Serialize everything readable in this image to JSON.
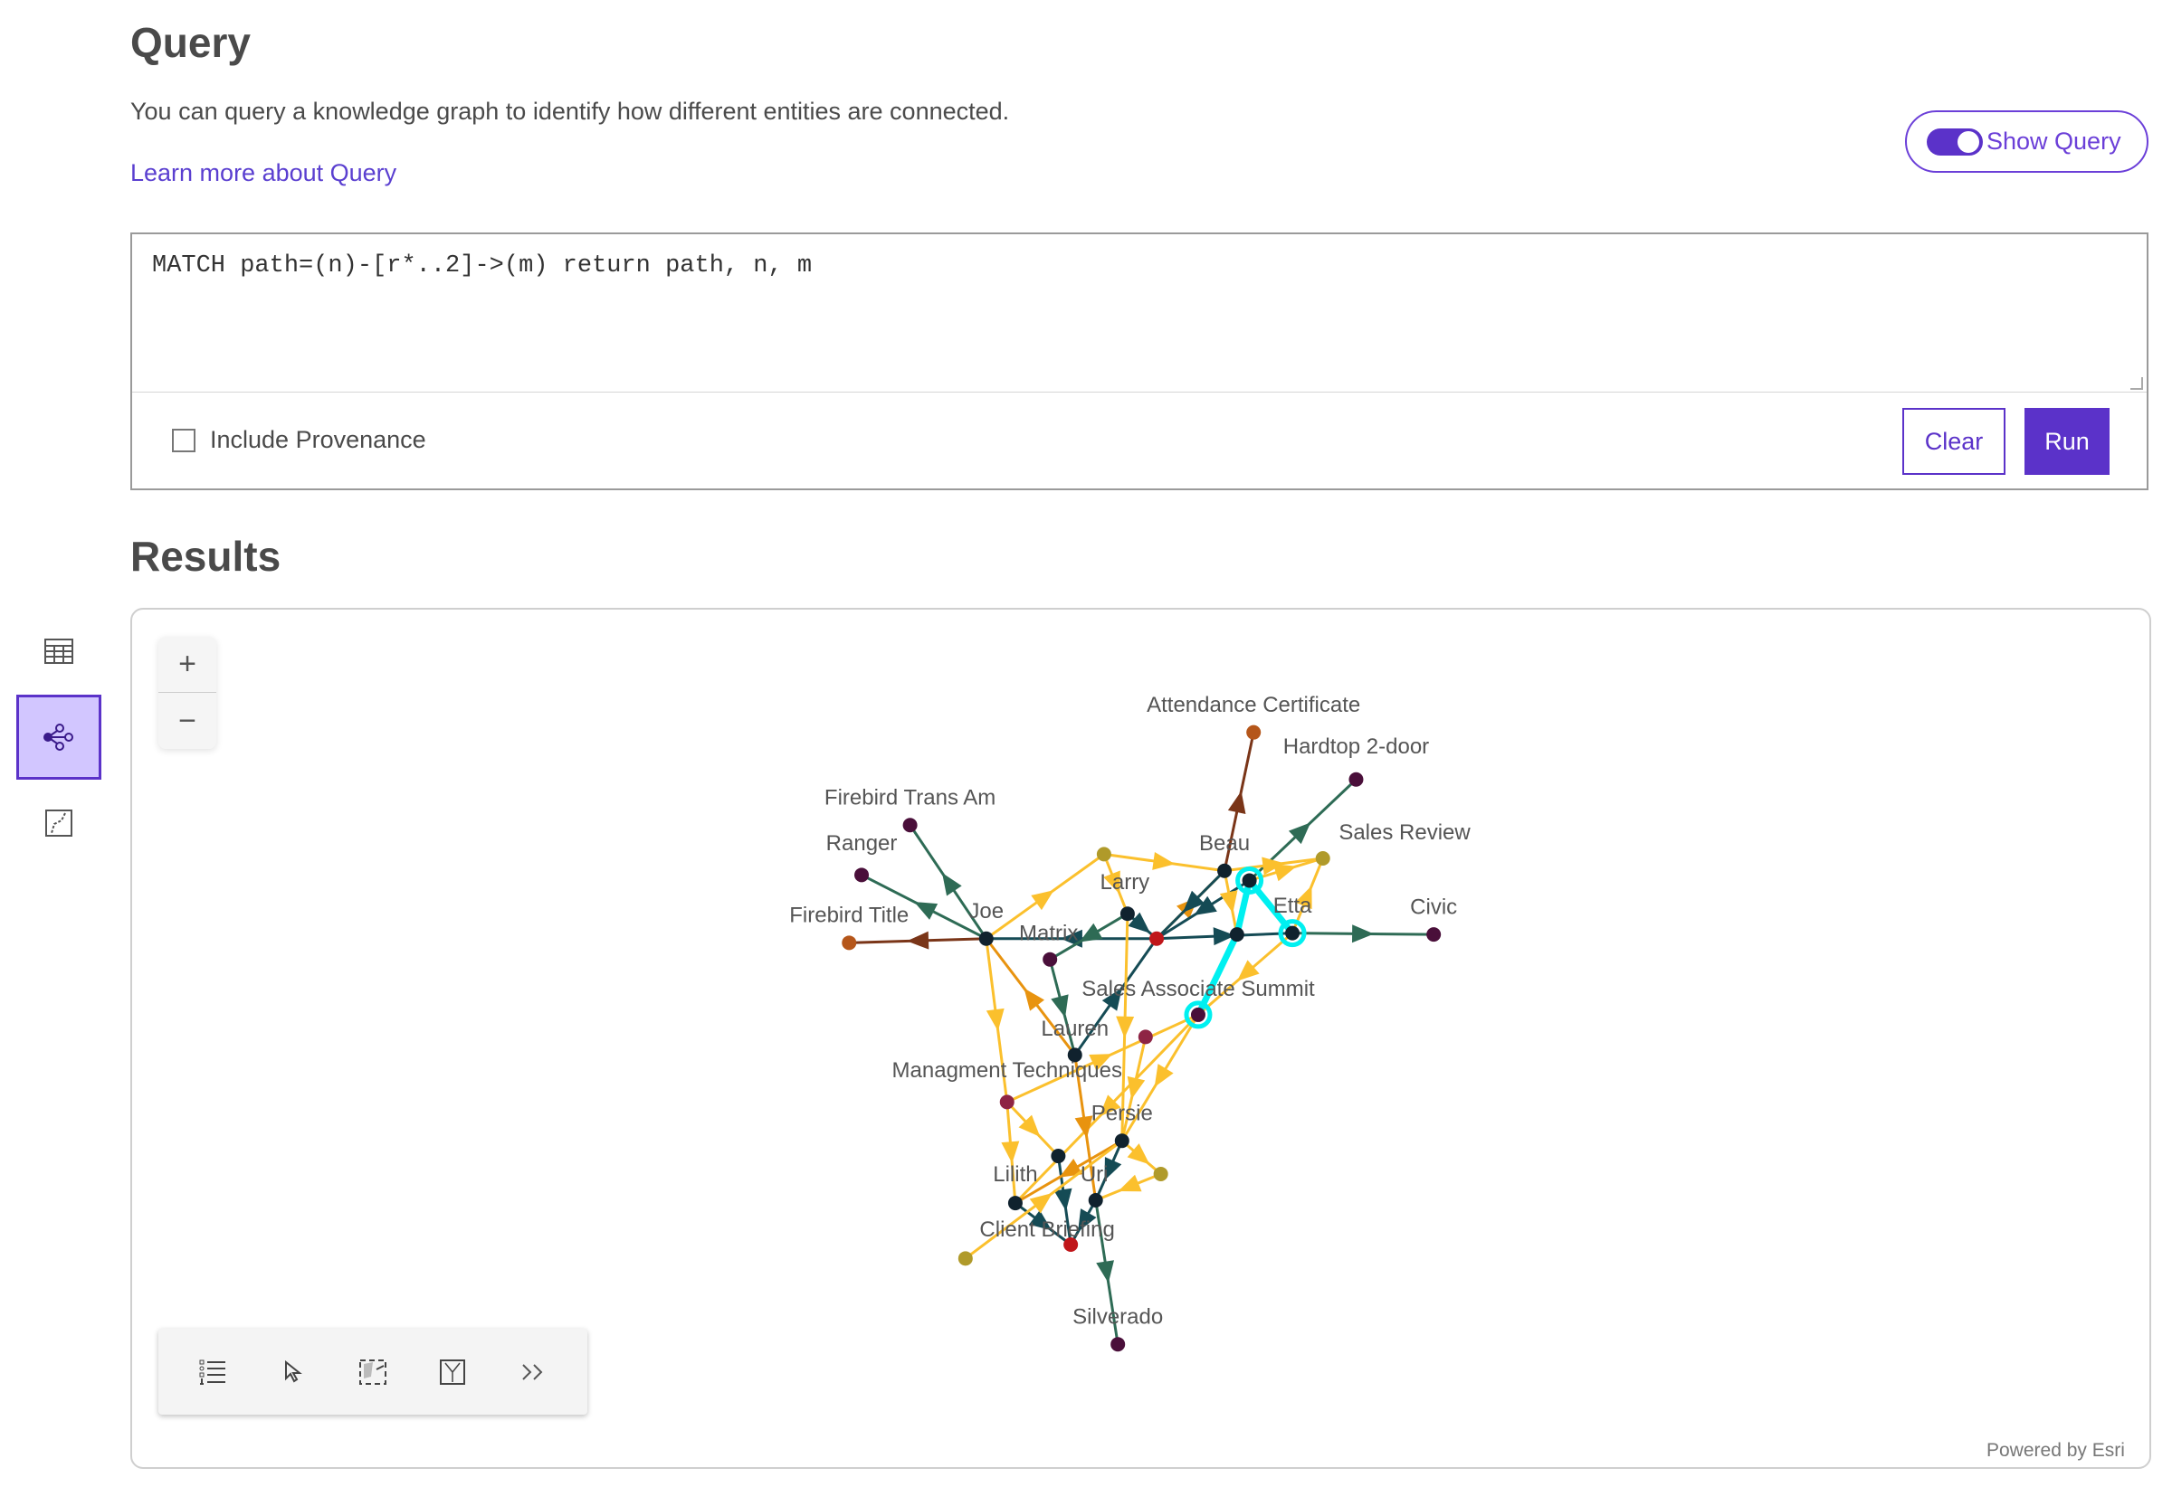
{
  "header": {
    "title": "Query",
    "description": "You can query a knowledge graph to identify how different entities are connected.",
    "learn_more": "Learn more about Query",
    "show_query_label": "Show Query",
    "show_query_on": true
  },
  "query": {
    "text": "MATCH path=(n)-[r*..2]->(m) return path, n, m",
    "include_provenance_label": "Include Provenance",
    "include_provenance_checked": false,
    "clear_label": "Clear",
    "run_label": "Run"
  },
  "results": {
    "title": "Results",
    "side_tabs": [
      {
        "icon": "table-icon"
      },
      {
        "icon": "link-chart-icon",
        "active": true
      },
      {
        "icon": "map-icon"
      }
    ],
    "zoom_in": "+",
    "zoom_out": "−",
    "toolbar": [
      {
        "icon": "list-icon"
      },
      {
        "icon": "select-cursor-icon"
      },
      {
        "icon": "lasso-select-icon"
      },
      {
        "icon": "layout-icon"
      },
      {
        "icon": "expand-icon"
      }
    ],
    "powered_by": "Powered by Esri"
  },
  "colors": {
    "accent": "#5b32c9",
    "highlight": "#00f0f0"
  },
  "graph": {
    "nodes": [
      {
        "id": "attendance",
        "label": "Attendance Certificate",
        "color": "#b5561a"
      },
      {
        "id": "hardtop",
        "label": "Hardtop 2-door",
        "color": "#4a0f3a"
      },
      {
        "id": "fta",
        "label": "Firebird Trans Am",
        "color": "#4a0f3a"
      },
      {
        "id": "ranger",
        "label": "Ranger",
        "color": "#4a0f3a"
      },
      {
        "id": "ftitle",
        "label": "Firebird Title",
        "color": "#b5561a"
      },
      {
        "id": "joe",
        "label": "Joe",
        "color": "#10222e"
      },
      {
        "id": "beau",
        "label": "Beau",
        "color": "#10222e"
      },
      {
        "id": "salesreview",
        "label": "Sales Review",
        "color": "#b09a2a"
      },
      {
        "id": "larry",
        "label": "Larry",
        "color": "#10222e"
      },
      {
        "id": "matrix",
        "label": "Matrix",
        "color": "#4a0f3a"
      },
      {
        "id": "red1",
        "label": "",
        "color": "#c0161a"
      },
      {
        "id": "etta",
        "label": "Etta",
        "color": "#10222e"
      },
      {
        "id": "civic",
        "label": "Civic",
        "color": "#4a0f3a"
      },
      {
        "id": "ytop",
        "label": "",
        "color": "#b09a2a"
      },
      {
        "id": "cy1",
        "label": "",
        "color": "#10222e"
      },
      {
        "id": "n893",
        "label": "",
        "color": "#10222e"
      },
      {
        "id": "summit",
        "label": "Sales Associate Summit",
        "color": "#4a0f3a"
      },
      {
        "id": "lauren",
        "label": "Lauren",
        "color": "#10222e"
      },
      {
        "id": "m827",
        "label": "",
        "color": "#8e2444"
      },
      {
        "id": "mgmt",
        "label": "Managment Techniques",
        "color": "#8e2444"
      },
      {
        "id": "persie",
        "label": "Persie",
        "color": "#10222e"
      },
      {
        "id": "n764",
        "label": "",
        "color": "#10222e"
      },
      {
        "id": "o838",
        "label": "",
        "color": "#b09a2a"
      },
      {
        "id": "lilith",
        "label": "Lilith",
        "color": "#10222e"
      },
      {
        "id": "uri",
        "label": "Uri",
        "color": "#10222e"
      },
      {
        "id": "client",
        "label": "Client Briefing",
        "color": "#c0161a"
      },
      {
        "id": "o697",
        "label": "",
        "color": "#b09a2a"
      },
      {
        "id": "silverado",
        "label": "Silverado",
        "color": "#4a0f3a"
      }
    ],
    "edges": [
      {
        "from": "joe",
        "to": "fta",
        "color": "#2e6b55"
      },
      {
        "from": "joe",
        "to": "ranger",
        "color": "#2e6b55"
      },
      {
        "from": "joe",
        "to": "ftitle",
        "color": "#7a3518"
      },
      {
        "from": "joe",
        "to": "ytop",
        "color": "#fbc02d"
      },
      {
        "from": "joe",
        "to": "mgmt",
        "color": "#fbc02d"
      },
      {
        "from": "lauren",
        "to": "joe",
        "color": "#e8930f"
      },
      {
        "from": "red1",
        "to": "joe",
        "color": "#154b55"
      },
      {
        "from": "beau",
        "to": "attendance",
        "color": "#7a3518"
      },
      {
        "from": "cy1",
        "to": "hardtop",
        "color": "#2e6b55"
      },
      {
        "from": "larry",
        "to": "matrix",
        "color": "#2e6b55"
      },
      {
        "from": "larry",
        "to": "red1",
        "color": "#154b55"
      },
      {
        "from": "red1",
        "to": "beau",
        "color": "#e8930f"
      },
      {
        "from": "ytop",
        "to": "beau",
        "color": "#fbc02d"
      },
      {
        "from": "ytop",
        "to": "larry",
        "color": "#fbc02d"
      },
      {
        "from": "beau",
        "to": "red1",
        "color": "#154b55"
      },
      {
        "from": "cy1",
        "to": "red1",
        "color": "#154b55"
      },
      {
        "from": "red1",
        "to": "etta",
        "color": "#154b55"
      },
      {
        "from": "etta",
        "to": "civic",
        "color": "#2e6b55"
      },
      {
        "from": "matrix",
        "to": "lauren",
        "color": "#2e6b55"
      },
      {
        "from": "lauren",
        "to": "red1",
        "color": "#154b55"
      },
      {
        "from": "beau",
        "to": "salesreview",
        "color": "#fbc02d"
      },
      {
        "from": "cy1",
        "to": "salesreview",
        "color": "#fbc02d"
      },
      {
        "from": "etta",
        "to": "salesreview",
        "color": "#fbc02d"
      },
      {
        "from": "etta",
        "to": "summit",
        "color": "#fbc02d"
      },
      {
        "from": "summit",
        "to": "persie",
        "color": "#fbc02d"
      },
      {
        "from": "summit",
        "to": "lilith",
        "color": "#fbc02d"
      },
      {
        "from": "beau",
        "to": "n893",
        "color": "#fbc02d"
      },
      {
        "from": "larry",
        "to": "persie",
        "color": "#fbc02d"
      },
      {
        "from": "m827",
        "to": "persie",
        "color": "#fbc02d"
      },
      {
        "from": "lauren",
        "to": "uri",
        "color": "#e8930f"
      },
      {
        "from": "mgmt",
        "to": "lilith",
        "color": "#fbc02d"
      },
      {
        "from": "mgmt",
        "to": "n764",
        "color": "#fbc02d"
      },
      {
        "from": "mgmt",
        "to": "summit",
        "color": "#fbc02d"
      },
      {
        "from": "n764",
        "to": "client",
        "color": "#154b55"
      },
      {
        "from": "lilith",
        "to": "client",
        "color": "#154b55"
      },
      {
        "from": "uri",
        "to": "client",
        "color": "#154b55"
      },
      {
        "from": "uri",
        "to": "silverado",
        "color": "#2e6b55"
      },
      {
        "from": "persie",
        "to": "uri",
        "color": "#154b55"
      },
      {
        "from": "persie",
        "to": "lilith",
        "color": "#e8930f"
      },
      {
        "from": "o838",
        "to": "uri",
        "color": "#fbc02d"
      },
      {
        "from": "o697",
        "to": "persie",
        "color": "#fbc02d"
      },
      {
        "from": "persie",
        "to": "o838",
        "color": "#fbc02d"
      },
      {
        "from": "summit",
        "to": "n893",
        "color": "#00f0f0"
      },
      {
        "from": "n893",
        "to": "cy1",
        "color": "#00f0f0"
      },
      {
        "from": "cy1",
        "to": "etta",
        "color": "#00f0f0"
      }
    ]
  }
}
